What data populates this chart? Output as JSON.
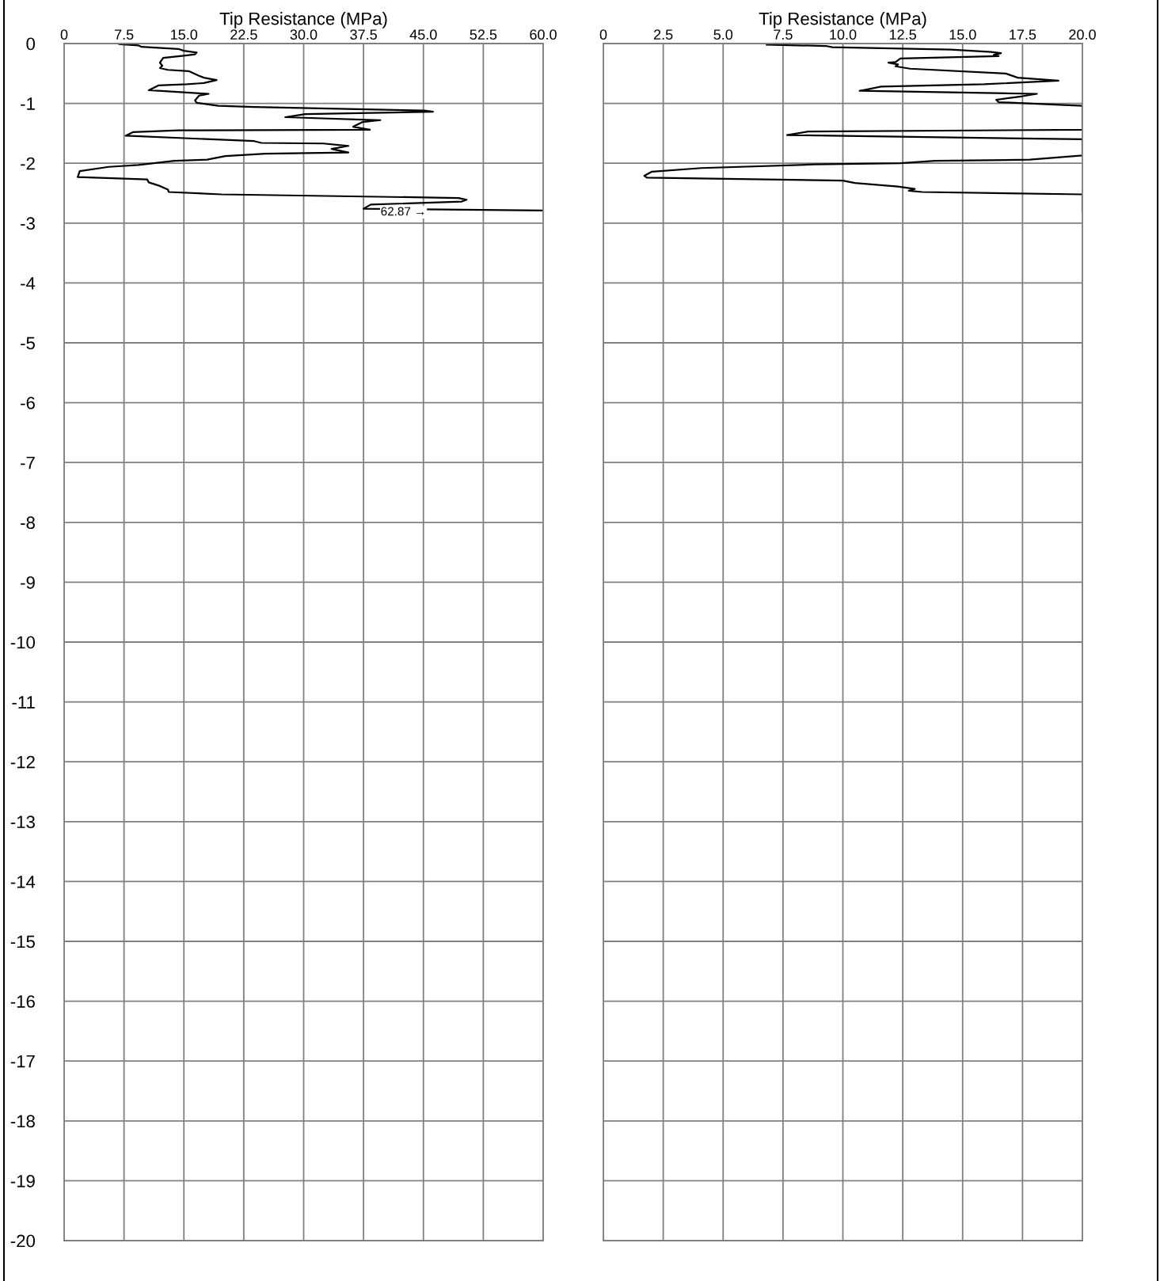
{
  "chart_data": [
    {
      "type": "line",
      "xlabel": "Tip Resistance (MPa)",
      "xlim": [
        0,
        60
      ],
      "ylim": [
        -20,
        0
      ],
      "xticks": [
        0,
        7.5,
        {
          "value": 15,
          "label": "15.0"
        },
        22.5,
        {
          "value": 30,
          "label": "30.0"
        },
        37.5,
        {
          "value": 45,
          "label": "45.0"
        },
        52.5,
        {
          "value": 60,
          "label": "60.0"
        }
      ],
      "yticks": [
        0,
        -1,
        -2,
        -3,
        -4,
        -5,
        -6,
        -7,
        -8,
        -9,
        -10,
        -11,
        -12,
        -13,
        -14,
        -15,
        -16,
        -17,
        -18,
        -19,
        -20
      ],
      "grid": true,
      "marker": "none",
      "line_style": "solid",
      "annotations": [
        {
          "text": "62.87 →",
          "x": 42.5,
          "y": -2.82
        }
      ],
      "series": [
        {
          "color": "#000000",
          "values": [
            -0.01,
            -0.03,
            -0.055,
            -0.09,
            -0.12,
            -0.15,
            -0.18,
            -0.2,
            -0.24,
            -0.32,
            -0.37,
            -0.41,
            -0.44,
            -0.46,
            -0.54,
            -0.57,
            -0.61,
            -0.66,
            -0.68,
            -0.7,
            -0.78,
            -0.84,
            -0.87,
            -0.95,
            -0.99,
            -1.04,
            -1.06,
            -1.12,
            -1.14,
            -1.18,
            -1.23,
            -1.28,
            -1.31,
            -1.39,
            -1.44,
            -1.45,
            -1.48,
            -1.54,
            -1.63,
            -1.66,
            -1.67,
            -1.71,
            -1.76,
            -1.82,
            -1.84,
            -1.88,
            -1.94,
            -1.96,
            -2.03,
            -2.06,
            -2.13,
            -2.23,
            -2.27,
            -2.32,
            -2.38,
            -2.44,
            -2.48,
            -2.52,
            -2.58,
            -2.61,
            -2.64,
            -2.69,
            -2.76,
            -2.79
          ],
          "x": [
            6.9,
            9.3,
            9.7,
            14.3,
            15.0,
            16.6,
            16.4,
            15.2,
            12.4,
            12.0,
            12.3,
            12.0,
            13.0,
            15.6,
            16.9,
            17.5,
            19.1,
            17.5,
            15.4,
            11.8,
            10.6,
            18.1,
            16.9,
            16.4,
            16.6,
            19.3,
            23.8,
            45.1,
            46.2,
            30.2,
            27.7,
            39.6,
            37.4,
            36.2,
            38.3,
            14.3,
            8.6,
            7.7,
            23.8,
            24.7,
            32.5,
            35.6,
            33.5,
            35.6,
            25.2,
            20.2,
            17.9,
            13.8,
            9.3,
            5.6,
            1.96,
            1.7,
            10.4,
            10.6,
            12.0,
            13.0,
            13.1,
            19.7,
            49.4,
            50.4,
            49.8,
            38.4,
            37.5,
            60.0
          ]
        }
      ]
    },
    {
      "type": "line",
      "xlabel": "Tip Resistance (MPa)",
      "xlim": [
        0,
        20
      ],
      "ylim": [
        -20,
        0
      ],
      "tick_labels": "x",
      "xticks": [
        0,
        2.5,
        {
          "value": 5,
          "label": "5.0"
        },
        7.5,
        {
          "value": 10,
          "label": "10.0"
        },
        12.5,
        {
          "value": 15,
          "label": "15.0"
        },
        17.5,
        {
          "value": 20,
          "label": "20.0"
        }
      ],
      "yticks": [
        0,
        -1,
        -2,
        -3,
        -4,
        -5,
        -6,
        -7,
        -8,
        -9,
        -10,
        -11,
        -12,
        -13,
        -14,
        -15,
        -16,
        -17,
        -18,
        -19,
        -20
      ],
      "grid": true,
      "marker": "none",
      "line_style": "solid",
      "series": [
        {
          "color": "#000000",
          "values": [
            -0.02,
            -0.04,
            -0.06,
            -0.1,
            -0.14,
            -0.16,
            -0.19,
            -0.21,
            -0.25,
            -0.31,
            -0.32,
            -0.35,
            -0.38,
            -0.42,
            -0.5,
            -0.57,
            -0.62,
            -0.68,
            -0.72,
            -0.79,
            -0.84,
            -0.88,
            -0.94,
            -0.98,
            -1.04,
            -1.44,
            -1.47,
            -1.53,
            -1.6,
            -1.87,
            -1.94,
            -1.96,
            -2.0,
            -2.02,
            -2.08,
            -2.14,
            -2.21,
            -2.24,
            -2.29,
            -2.33,
            -2.39,
            -2.43,
            -2.46,
            -2.48,
            -2.52,
            -2.8
          ],
          "x": [
            6.82,
            9.29,
            9.56,
            14.5,
            16.2,
            16.6,
            16.3,
            16.5,
            12.4,
            12.2,
            11.9,
            12.3,
            12.2,
            12.8,
            16.8,
            17.3,
            19.0,
            15.9,
            11.6,
            10.7,
            18.1,
            17.5,
            16.4,
            16.5,
            20.0,
            20.0,
            8.55,
            7.67,
            20.0,
            20.0,
            17.8,
            13.85,
            12.4,
            8.8,
            4.1,
            2.03,
            1.71,
            1.82,
            10.0,
            10.5,
            12.3,
            13.0,
            12.75,
            13.3,
            20.0,
            20.0
          ]
        }
      ]
    }
  ]
}
